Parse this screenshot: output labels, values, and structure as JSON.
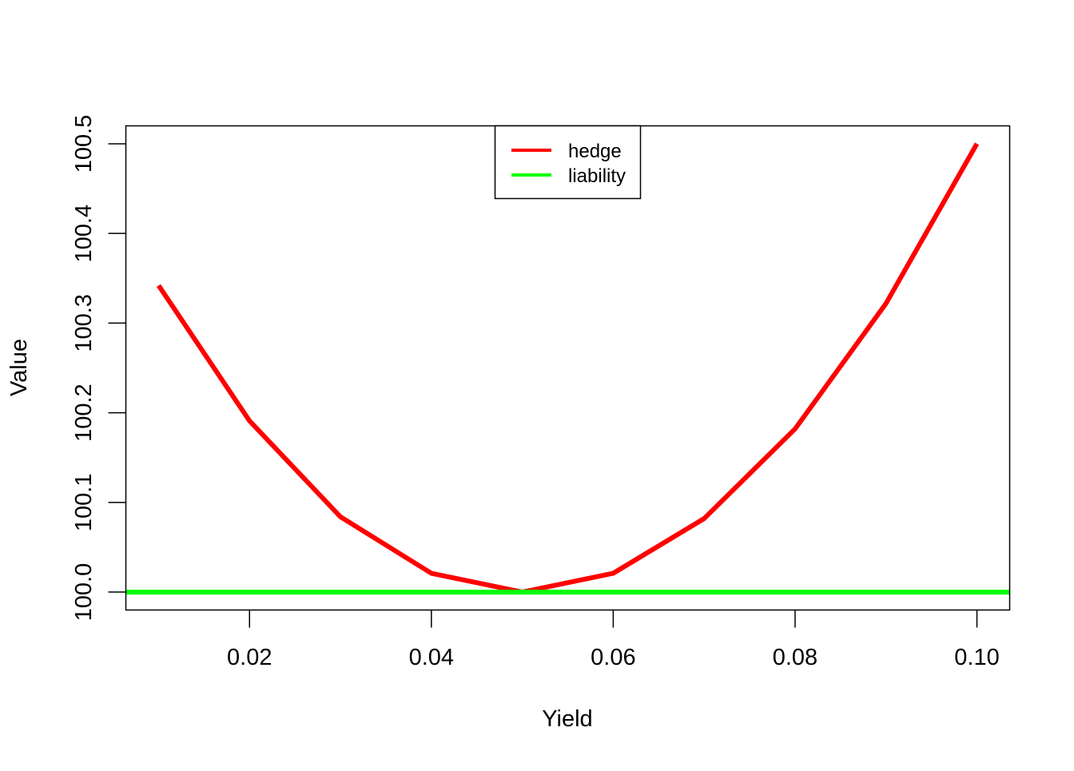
{
  "chart_data": {
    "type": "line",
    "title": "",
    "xlabel": "Yield",
    "ylabel": "Value",
    "xlim": [
      0.0064,
      0.1036
    ],
    "ylim": [
      99.98,
      100.52
    ],
    "x_ticks": [
      0.02,
      0.04,
      0.06,
      0.08,
      0.1
    ],
    "x_tick_labels": [
      "0.02",
      "0.04",
      "0.06",
      "0.08",
      "0.10"
    ],
    "y_ticks": [
      100.0,
      100.1,
      100.2,
      100.3,
      100.4,
      100.5
    ],
    "y_tick_labels": [
      "100.0",
      "100.1",
      "100.2",
      "100.3",
      "100.4",
      "100.5"
    ],
    "grid": false,
    "legend_position": "top-center",
    "series": [
      {
        "name": "hedge",
        "color": "#ff0000",
        "x": [
          0.01,
          0.02,
          0.03,
          0.04,
          0.05,
          0.06,
          0.07,
          0.08,
          0.09,
          0.1
        ],
        "y": [
          100.342,
          100.191,
          100.084,
          100.021,
          100.0,
          100.021,
          100.082,
          100.182,
          100.322,
          100.5
        ]
      },
      {
        "name": "liability",
        "color": "#00ff00",
        "x": [
          0.0064,
          0.1036
        ],
        "y": [
          100.0,
          100.0
        ]
      }
    ]
  }
}
